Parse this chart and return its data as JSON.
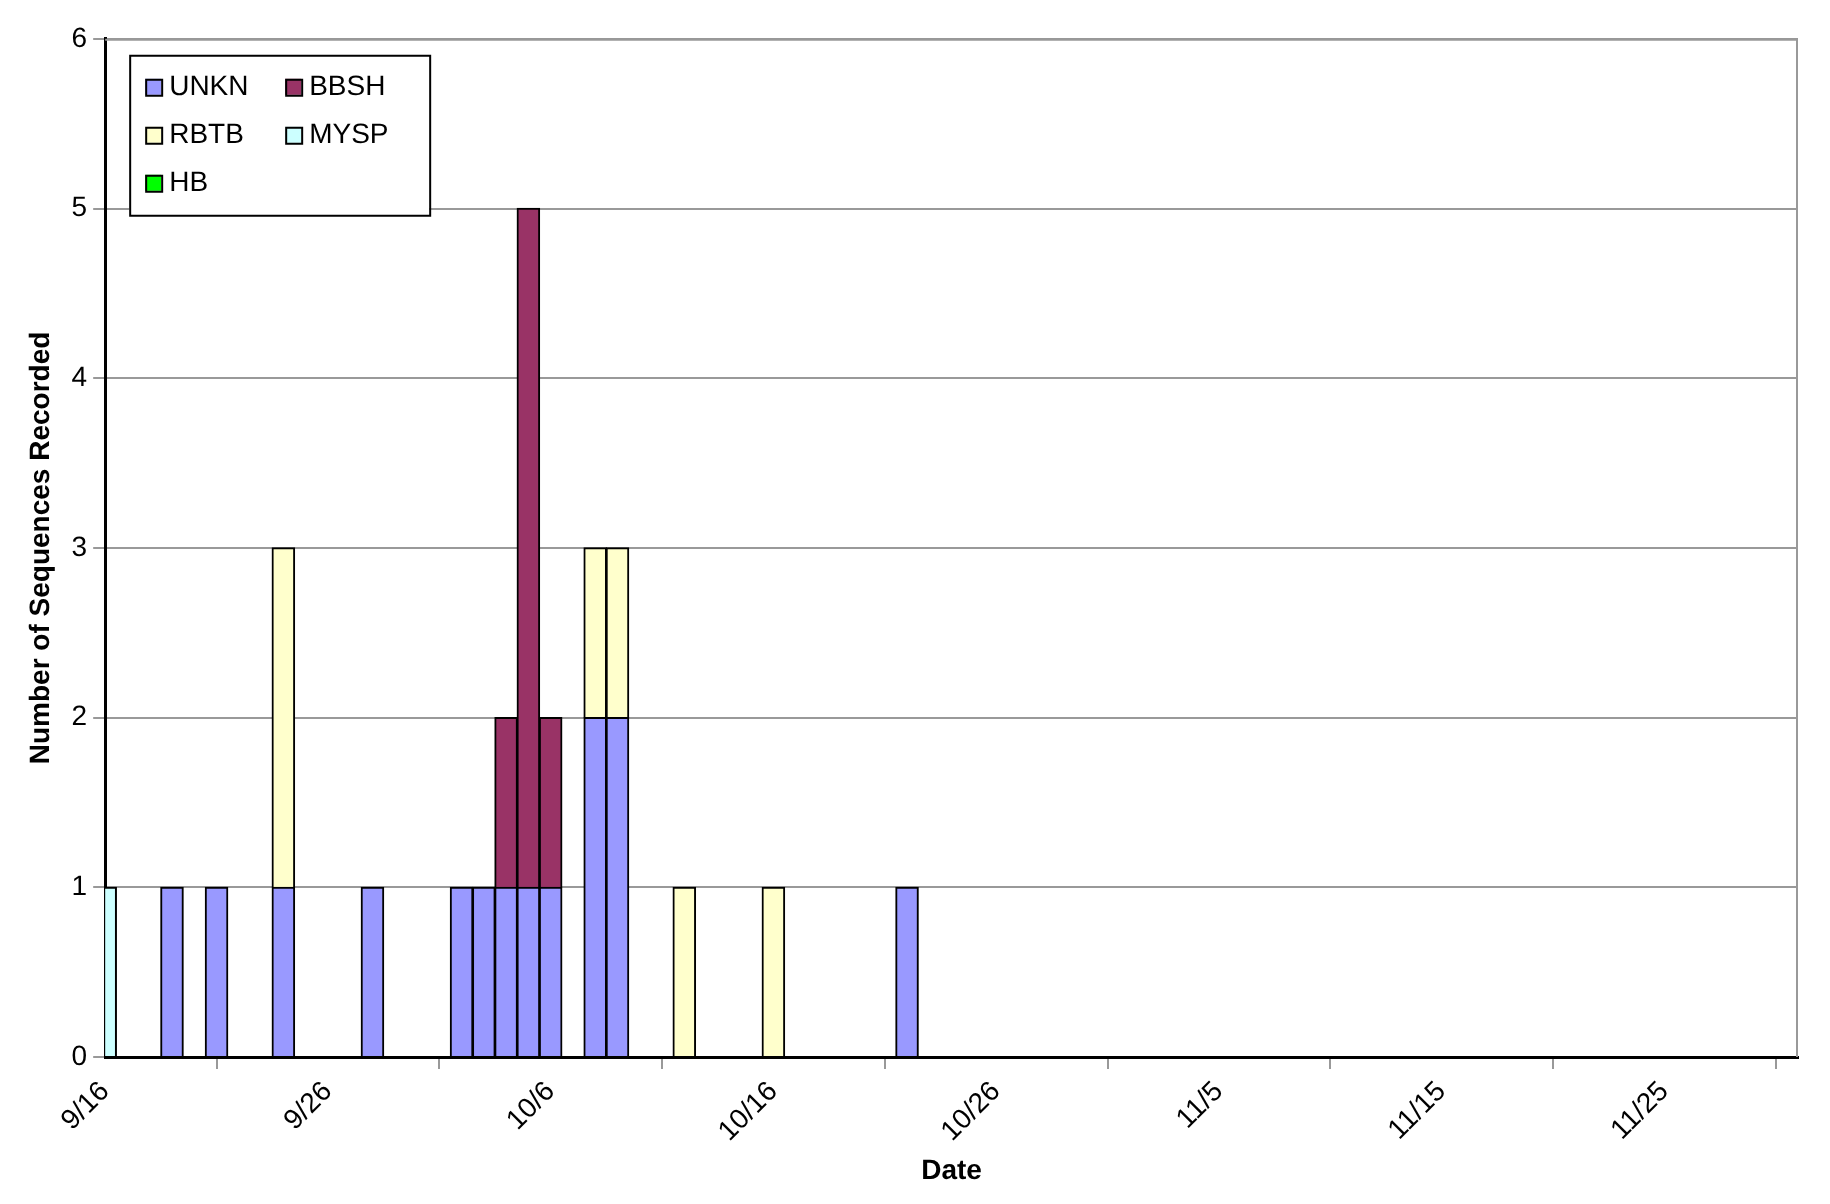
{
  "chart_data": {
    "type": "bar",
    "stacked": true,
    "xlabel": "Date",
    "ylabel": "Number of Sequences Recorded",
    "x": [
      "--09-16",
      "--09-19",
      "--09-21",
      "--09-24",
      "--09-28",
      "--10-02",
      "--10-03",
      "--10-04",
      "--10-05",
      "--10-06",
      "--10-08",
      "--10-09",
      "--10-12",
      "--10-16",
      "--10-22"
    ],
    "series": [
      {
        "name": "UNKN",
        "color": "#9999ff",
        "values": [
          null,
          1,
          1,
          1,
          1,
          1,
          1,
          1,
          1,
          1,
          2,
          2,
          null,
          null,
          1
        ]
      },
      {
        "name": "BBSH",
        "color": "#993366",
        "values": [
          null,
          null,
          null,
          null,
          null,
          null,
          null,
          1,
          4,
          1,
          null,
          null,
          null,
          null,
          null
        ]
      },
      {
        "name": "RBTB",
        "color": "#ffffcc",
        "values": [
          null,
          null,
          null,
          2,
          null,
          null,
          null,
          null,
          null,
          null,
          1,
          1,
          1,
          1,
          null
        ]
      },
      {
        "name": "MYSP",
        "color": "#ccffff",
        "values": [
          1,
          null,
          null,
          null,
          null,
          null,
          null,
          null,
          null,
          null,
          null,
          null,
          null,
          null,
          null
        ]
      },
      {
        "name": "HB",
        "color": "#00ff00",
        "values": [
          null,
          null,
          null,
          null,
          null,
          null,
          null,
          null,
          null,
          null,
          null,
          null,
          null,
          null,
          null
        ]
      }
    ],
    "xlim": [
      "--09-16",
      "--12-01"
    ],
    "xticks": [
      {
        "value": "--09-16",
        "label": "9/16"
      },
      {
        "value": "--09-26",
        "label": "9/26"
      },
      {
        "value": "--10-06",
        "label": "10/6"
      },
      {
        "value": "--10-16",
        "label": "10/16"
      },
      {
        "value": "--10-26",
        "label": "10/26"
      },
      {
        "value": "--11-05",
        "label": "11/5"
      },
      {
        "value": "--11-15",
        "label": "11/15"
      },
      {
        "value": "--11-25",
        "label": "11/25"
      }
    ],
    "ylim": [
      0,
      6
    ],
    "yticks": [
      0,
      1,
      2,
      3,
      4,
      5,
      6
    ],
    "grid": "y",
    "legend": "top left"
  }
}
